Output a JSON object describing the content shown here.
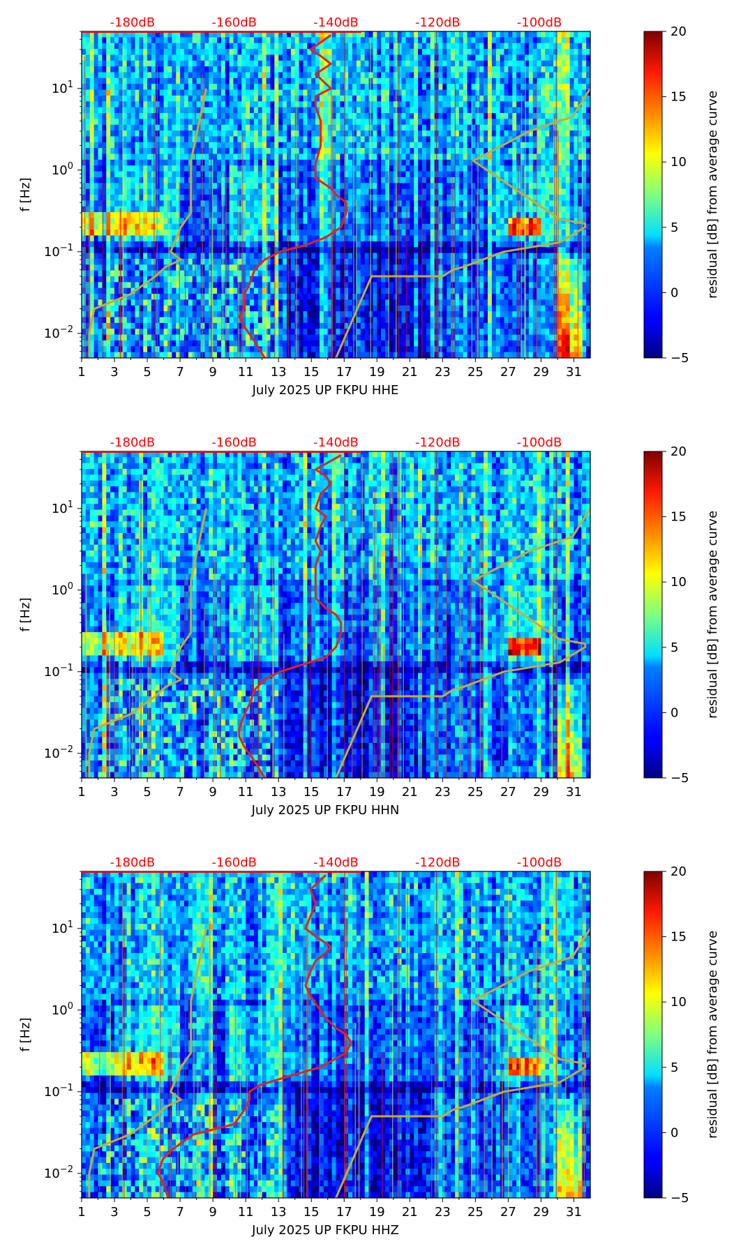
{
  "colors": {
    "noise_model": "#c4ac3a",
    "median_psd": "#e8201c",
    "db_label": "#ff0000"
  },
  "colormap": "jet",
  "x_ticks": [
    "1",
    "3",
    "5",
    "7",
    "9",
    "11",
    "13",
    "15",
    "17",
    "19",
    "21",
    "23",
    "25",
    "27",
    "29",
    "31"
  ],
  "y_ticks": [
    {
      "base": "10",
      "exp": "1",
      "value": 10
    },
    {
      "base": "10",
      "exp": "0",
      "value": 1
    },
    {
      "base": "10",
      "exp": "−1",
      "value": 0.1
    },
    {
      "base": "10",
      "exp": "−2",
      "value": 0.01
    }
  ],
  "db_ticks": [
    "-180dB",
    "-160dB",
    "-140dB",
    "-120dB",
    "-100dB"
  ],
  "colorbar": {
    "label": "residual [dB] from average curve",
    "ticks": [
      "20",
      "15",
      "10",
      "5",
      "0",
      "−5"
    ],
    "range": [
      -5,
      20
    ]
  },
  "chart_data": [
    {
      "type": "heatmap",
      "xlabel": "July 2025 UP FKPU  HHE",
      "ylabel": "f [Hz]",
      "xlim": [
        1,
        32
      ],
      "ylim": [
        0.005,
        50
      ],
      "y_scale": "log",
      "db_axis": [
        -190,
        -90
      ],
      "noise_model_low": {
        "db": [
          -188.5,
          -188.5,
          -187.5,
          -180.5,
          -175.5,
          -173.5,
          -170.5,
          -172.5,
          -170.5,
          -168.5,
          -168.5,
          -165.5
        ],
        "freq": [
          0.005,
          0.01,
          0.02,
          0.03,
          0.05,
          0.065,
          0.08,
          0.1,
          0.2,
          0.3,
          1.3,
          10
        ]
      },
      "noise_model_high": {
        "db": [
          -140,
          -133,
          -119,
          -118,
          -117,
          -115,
          -107,
          -96,
          -91,
          -91,
          -96,
          -113,
          -102,
          -93.5,
          -90
        ],
        "freq": [
          0.005,
          0.05,
          0.05,
          0.055,
          0.06,
          0.065,
          0.1,
          0.13,
          0.2,
          0.22,
          0.25,
          1.3,
          3,
          4.5,
          10
        ]
      },
      "median_psd": {
        "db": [
          -154,
          -156,
          -158,
          -159,
          -158,
          -158,
          -157,
          -156,
          -154,
          -151,
          -146,
          -142,
          -139,
          -138,
          -138,
          -140,
          -141,
          -144,
          -144,
          -143,
          -143,
          -143,
          -144,
          -144,
          -141,
          -144,
          -141,
          -143,
          -145,
          -141
        ],
        "freq": [
          0.005,
          0.008,
          0.012,
          0.016,
          0.02,
          0.03,
          0.04,
          0.06,
          0.08,
          0.1,
          0.12,
          0.15,
          0.2,
          0.3,
          0.4,
          0.5,
          0.6,
          0.8,
          1.2,
          2,
          3,
          4,
          6,
          8,
          10,
          15,
          20,
          25,
          30,
          45
        ]
      }
    },
    {
      "type": "heatmap",
      "xlabel": "July 2025 UP FKPU  HHN",
      "ylabel": "f [Hz]",
      "xlim": [
        1,
        32
      ],
      "ylim": [
        0.005,
        50
      ],
      "y_scale": "log",
      "db_axis": [
        -190,
        -90
      ],
      "noise_model_low": {
        "db": [
          -188.5,
          -188.5,
          -187.5,
          -180.5,
          -175.5,
          -173.5,
          -170.5,
          -172.5,
          -170.5,
          -168.5,
          -168.5,
          -165.5
        ],
        "freq": [
          0.005,
          0.01,
          0.02,
          0.03,
          0.05,
          0.065,
          0.08,
          0.1,
          0.2,
          0.3,
          1.3,
          10
        ]
      },
      "noise_model_high": {
        "db": [
          -140,
          -133,
          -119,
          -118,
          -117,
          -115,
          -107,
          -96,
          -91,
          -91,
          -96,
          -113,
          -102,
          -93.5,
          -90
        ],
        "freq": [
          0.005,
          0.05,
          0.05,
          0.055,
          0.06,
          0.065,
          0.1,
          0.13,
          0.2,
          0.22,
          0.25,
          1.3,
          3,
          4.5,
          10
        ]
      },
      "median_psd": {
        "db": [
          -154,
          -156,
          -158,
          -159,
          -159,
          -158,
          -157,
          -156,
          -154,
          -151,
          -147,
          -142,
          -140,
          -139,
          -139,
          -140,
          -142,
          -144,
          -144,
          -144,
          -143,
          -144,
          -143,
          -142,
          -144,
          -143,
          -141,
          -142,
          -144,
          -139
        ],
        "freq": [
          0.005,
          0.008,
          0.012,
          0.016,
          0.02,
          0.03,
          0.04,
          0.06,
          0.08,
          0.1,
          0.12,
          0.15,
          0.2,
          0.3,
          0.4,
          0.5,
          0.6,
          0.8,
          1.2,
          2,
          3,
          4,
          6,
          8,
          10,
          15,
          20,
          25,
          30,
          45
        ]
      }
    },
    {
      "type": "heatmap",
      "xlabel": "July 2025 UP FKPU  HHZ",
      "ylabel": "f [Hz]",
      "xlim": [
        1,
        32
      ],
      "ylim": [
        0.005,
        50
      ],
      "y_scale": "log",
      "db_axis": [
        -190,
        -90
      ],
      "noise_model_low": {
        "db": [
          -188.5,
          -188.5,
          -187.5,
          -180.5,
          -175.5,
          -173.5,
          -170.5,
          -172.5,
          -170.5,
          -168.5,
          -168.5,
          -165.5
        ],
        "freq": [
          0.005,
          0.01,
          0.02,
          0.03,
          0.05,
          0.065,
          0.08,
          0.1,
          0.2,
          0.3,
          1.3,
          10
        ]
      },
      "noise_model_high": {
        "db": [
          -140,
          -133,
          -119,
          -118,
          -117,
          -115,
          -107,
          -96,
          -91,
          -91,
          -96,
          -113,
          -102,
          -93.5,
          -90
        ],
        "freq": [
          0.005,
          0.05,
          0.05,
          0.055,
          0.06,
          0.065,
          0.1,
          0.13,
          0.2,
          0.22,
          0.25,
          1.3,
          3,
          4.5,
          10
        ]
      },
      "median_psd": {
        "db": [
          -173,
          -174,
          -175,
          -174,
          -172,
          -168,
          -160,
          -158,
          -157,
          -157,
          -155,
          -150,
          -143,
          -138,
          -137,
          -138,
          -140,
          -142,
          -144,
          -145,
          -146,
          -145,
          -144,
          -142,
          -141,
          -144,
          -146,
          -144,
          -145,
          -142
        ],
        "freq": [
          0.005,
          0.008,
          0.01,
          0.015,
          0.02,
          0.03,
          0.04,
          0.06,
          0.08,
          0.1,
          0.12,
          0.15,
          0.2,
          0.3,
          0.4,
          0.5,
          0.6,
          0.8,
          1.2,
          1.5,
          2,
          3,
          4,
          5,
          6,
          8,
          10,
          20,
          30,
          45
        ]
      }
    }
  ]
}
